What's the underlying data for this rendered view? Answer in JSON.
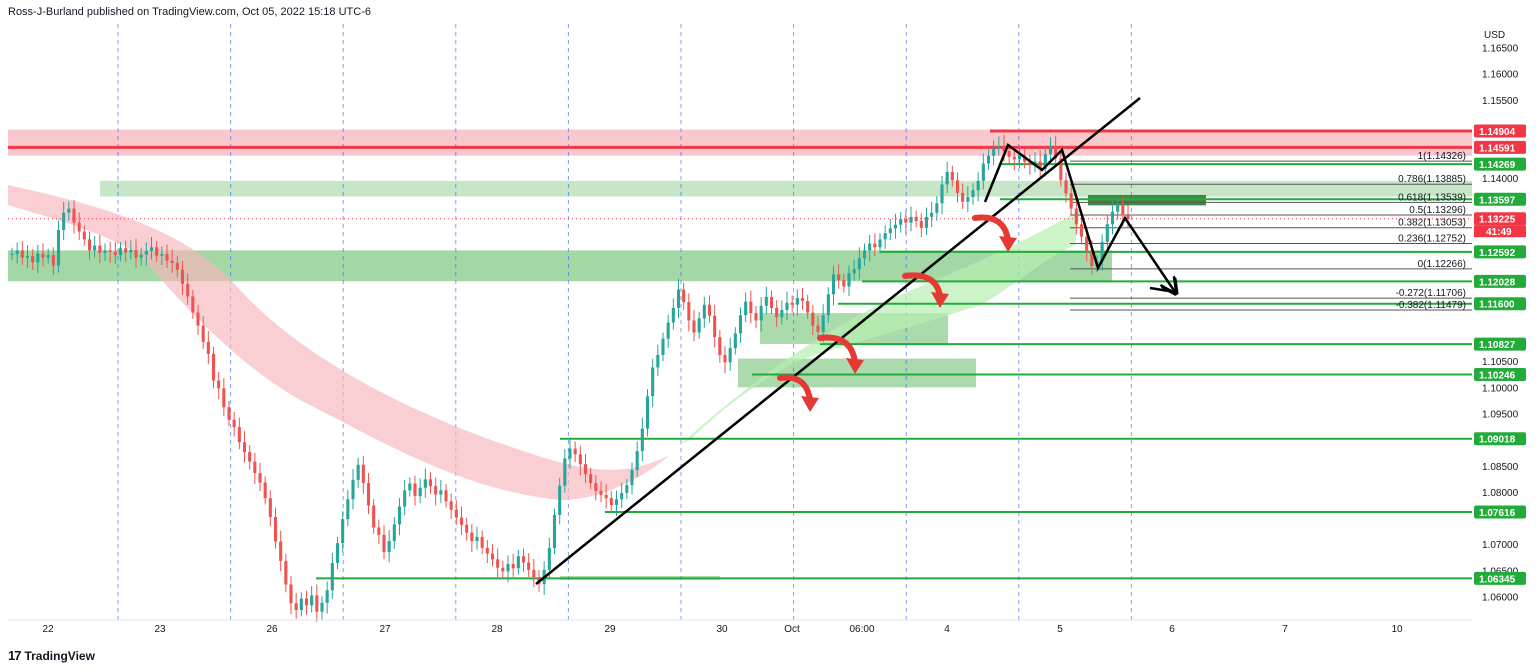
{
  "header": {
    "publisher": "Ross-J-Burland published on TradingView.com, Oct 05, 2022 15:18 UTC-6"
  },
  "footer": {
    "logo_mark": "17",
    "logo_text": "TradingView"
  },
  "chart_data": {
    "type": "candlestick",
    "title": "",
    "currency_label": "USD",
    "ylim": [
      1.0555,
      1.1695
    ],
    "y_ticks": [
      1.165,
      1.16,
      1.155,
      1.14,
      1.105,
      1.1,
      1.095,
      1.085,
      1.08,
      1.07,
      1.065,
      1.06
    ],
    "y_tick_labels": [
      "1.16500",
      "1.16000",
      "1.15500",
      "1.14000",
      "1.10500",
      "1.10000",
      "1.09500",
      "1.08500",
      "1.08000",
      "1.07000",
      "1.06500",
      "1.06000"
    ],
    "x_labels": [
      "22",
      "23",
      "26",
      "27",
      "28",
      "29",
      "30",
      "Oct",
      "06:00",
      "4",
      "5",
      "6",
      "7",
      "10"
    ],
    "session_separators": 10,
    "price_tags": [
      {
        "value": 1.14904,
        "label": "1.14904",
        "color": "#f23645"
      },
      {
        "value": 1.14591,
        "label": "1.14591",
        "color": "#f23645"
      },
      {
        "value": 1.14269,
        "label": "1.14269",
        "color": "#22ab3a"
      },
      {
        "value": 1.13597,
        "label": "1.13597",
        "color": "#22ab3a"
      },
      {
        "value": 1.13225,
        "label": "1.13225",
        "color": "#f23645",
        "sub": "41:49"
      },
      {
        "value": 1.12592,
        "label": "1.12592",
        "color": "#22ab3a"
      },
      {
        "value": 1.12028,
        "label": "1.12028",
        "color": "#22ab3a"
      },
      {
        "value": 1.116,
        "label": "1.11600",
        "color": "#22ab3a"
      },
      {
        "value": 1.10827,
        "label": "1.10827",
        "color": "#22ab3a"
      },
      {
        "value": 1.10246,
        "label": "1.10246",
        "color": "#22ab3a"
      },
      {
        "value": 1.09018,
        "label": "1.09018",
        "color": "#22ab3a"
      },
      {
        "value": 1.07616,
        "label": "1.07616",
        "color": "#22ab3a"
      },
      {
        "value": 1.06345,
        "label": "1.06345",
        "color": "#22ab3a"
      }
    ],
    "fib_levels": [
      {
        "ratio": "1",
        "value": 1.14326,
        "label": "1(1.14326)"
      },
      {
        "ratio": "0.786",
        "value": 1.13885,
        "label": "0.786(1.13885)"
      },
      {
        "ratio": "0.618",
        "value": 1.13539,
        "label": "0.618(1.13539)"
      },
      {
        "ratio": "0.5",
        "value": 1.13296,
        "label": "0.5(1.13296)"
      },
      {
        "ratio": "0.382",
        "value": 1.13053,
        "label": "0.382(1.13053)"
      },
      {
        "ratio": "0.236",
        "value": 1.12752,
        "label": "0.236(1.12752)"
      },
      {
        "ratio": "0",
        "value": 1.12266,
        "label": "0(1.12266)"
      },
      {
        "ratio": "-0.272",
        "value": 1.11706,
        "label": "-0.272(1.11706)"
      },
      {
        "ratio": "-0.382",
        "value": 1.11479,
        "label": "-0.382(1.11479)"
      }
    ],
    "support_lines": [
      1.14269,
      1.13597,
      1.12592,
      1.12028,
      1.116,
      1.10827,
      1.10246,
      1.09018,
      1.07616,
      1.06345
    ],
    "resistance_lines": [
      1.14904,
      1.14591
    ],
    "close_series": [
      1.1255,
      1.1262,
      1.1248,
      1.1251,
      1.1239,
      1.1256,
      1.1248,
      1.1253,
      1.1233,
      1.1301,
      1.1334,
      1.1342,
      1.1315,
      1.1298,
      1.1283,
      1.1262,
      1.1271,
      1.1257,
      1.1262,
      1.1259,
      1.1253,
      1.1266,
      1.1258,
      1.1263,
      1.1248,
      1.1254,
      1.1261,
      1.1268,
      1.1252,
      1.1255,
      1.1242,
      1.1238,
      1.1225,
      1.1198,
      1.1174,
      1.1143,
      1.1118,
      1.1087,
      1.1064,
      1.1013,
      1.0998,
      1.0962,
      1.0938,
      1.0924,
      1.0895,
      1.0876,
      1.0858,
      1.0836,
      1.0818,
      1.0788,
      1.0752,
      1.0705,
      1.0668,
      1.0623,
      1.0587,
      1.0574,
      1.0596,
      1.0583,
      1.0602,
      1.0571,
      1.0588,
      1.0612,
      1.0664,
      1.0702,
      1.0748,
      1.0786,
      1.0823,
      1.0852,
      1.0817,
      1.0774,
      1.0732,
      1.0718,
      1.0685,
      1.0706,
      1.0738,
      1.0772,
      1.0803,
      1.0816,
      1.0792,
      1.0808,
      1.0824,
      1.0811,
      1.0795,
      1.0803,
      1.0782,
      1.0766,
      1.0751,
      1.0737,
      1.0722,
      1.0706,
      1.0714,
      1.0693,
      1.0682,
      1.0671,
      1.0655,
      1.0648,
      1.0662,
      1.0654,
      1.0677,
      1.0665,
      1.0651,
      1.0637,
      1.0624,
      1.0651,
      1.0693,
      1.0756,
      1.0812,
      1.0864,
      1.0883,
      1.0872,
      1.0853,
      1.0834,
      1.0817,
      1.0802,
      1.0794,
      1.0788,
      1.0775,
      1.0786,
      1.0798,
      1.0813,
      1.0842,
      1.0878,
      1.0921,
      1.0983,
      1.1038,
      1.1062,
      1.1093,
      1.1124,
      1.1152,
      1.1187,
      1.1163,
      1.1128,
      1.1105,
      1.1132,
      1.1158,
      1.1137,
      1.1096,
      1.1062,
      1.1048,
      1.1075,
      1.1103,
      1.1138,
      1.1164,
      1.1142,
      1.1128,
      1.1156,
      1.1173,
      1.1152,
      1.1134,
      1.1148,
      1.1162,
      1.1158,
      1.1171,
      1.1165,
      1.1143,
      1.1118,
      1.1106,
      1.1138,
      1.1178,
      1.1216,
      1.1205,
      1.1193,
      1.1218,
      1.1226,
      1.1247,
      1.1262,
      1.1275,
      1.1268,
      1.1283,
      1.1295,
      1.1304,
      1.1311,
      1.1322,
      1.1315,
      1.1326,
      1.1318,
      1.1305,
      1.1326,
      1.1334,
      1.1352,
      1.1388,
      1.1412,
      1.1396,
      1.1372,
      1.1355,
      1.1364,
      1.1377,
      1.1395,
      1.1428,
      1.1443,
      1.1457,
      1.1462,
      1.1452,
      1.1441,
      1.1436,
      1.1443,
      1.1431,
      1.1425,
      1.1432,
      1.1418,
      1.1446,
      1.1462,
      1.1438,
      1.1396,
      1.1371,
      1.1342,
      1.1312,
      1.1288,
      1.1262,
      1.1232,
      1.1241,
      1.1278,
      1.1312,
      1.1336,
      1.1348,
      1.1329,
      1.1322
    ],
    "arrow_markers": 4
  }
}
